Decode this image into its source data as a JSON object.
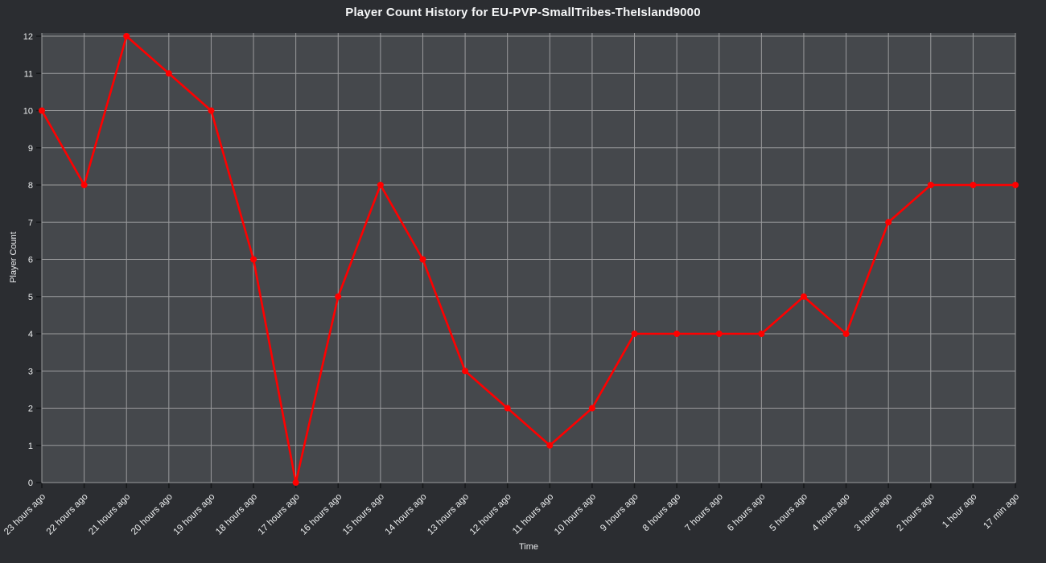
{
  "chart_data": {
    "type": "line",
    "title": "Player Count History for EU-PVP-SmallTribes-TheIsland9000",
    "xlabel": "Time",
    "ylabel": "Player Count",
    "categories": [
      "23 hours ago",
      "22 hours ago",
      "21 hours ago",
      "20 hours ago",
      "19 hours ago",
      "18 hours ago",
      "17 hours ago",
      "16 hours ago",
      "15 hours ago",
      "14 hours ago",
      "13 hours ago",
      "12 hours ago",
      "11 hours ago",
      "10 hours ago",
      "9 hours ago",
      "8 hours ago",
      "7 hours ago",
      "6 hours ago",
      "5 hours ago",
      "4 hours ago",
      "3 hours ago",
      "2 hours ago",
      "1 hour ago",
      "17 min ago"
    ],
    "values": [
      10,
      8,
      12,
      11,
      10,
      6,
      0,
      5,
      8,
      6,
      3,
      2,
      1,
      2,
      4,
      4,
      4,
      4,
      5,
      4,
      7,
      8,
      8,
      8
    ],
    "ylim": [
      0,
      12
    ],
    "yticks": [
      0,
      1,
      2,
      3,
      4,
      5,
      6,
      7,
      8,
      9,
      10,
      11,
      12
    ],
    "grid": true,
    "legend": "none",
    "line_color": "#ff0000",
    "marker": "circle"
  },
  "colors": {
    "outer_bg": "#2b2d31",
    "plot_bg": "#45484c",
    "grid": "#9a9b9d",
    "tick_mark": "#16181a",
    "text": "#eceeef"
  }
}
